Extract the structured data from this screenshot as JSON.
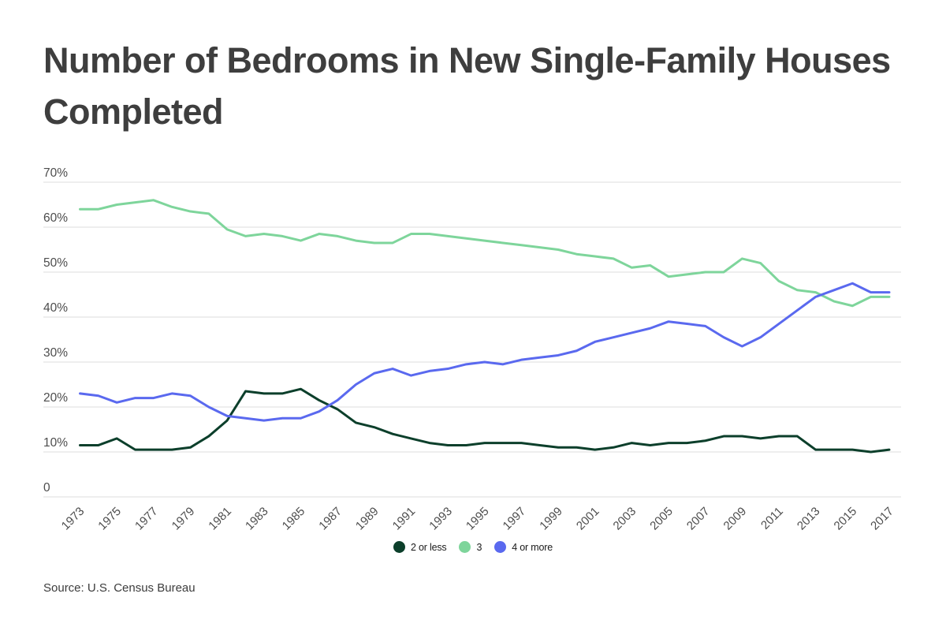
{
  "title": "Number of Bedrooms in New Single-Family Houses Completed",
  "source": "Source: U.S. Census Bureau",
  "legend": [
    {
      "label": "2 or less",
      "color": "#0c3f2b"
    },
    {
      "label": "3",
      "color": "#7ed59b"
    },
    {
      "label": "4 or more",
      "color": "#5a69ef"
    }
  ],
  "colors": {
    "series_2_or_less": "#0c3f2b",
    "series_3": "#7ed59b",
    "series_4_or_more": "#5a69ef",
    "gridline": "#dcdcdc",
    "tick_label": "#4d4d4d",
    "title_text": "#3e3e3e"
  },
  "y_axis": {
    "ticks": [
      0,
      10,
      20,
      30,
      40,
      50,
      60,
      70
    ],
    "tick_labels": [
      "0",
      "10%",
      "20%",
      "30%",
      "40%",
      "50%",
      "60%",
      "70%"
    ],
    "min": 0,
    "max": 70
  },
  "x_axis": {
    "tick_years": [
      1973,
      1975,
      1977,
      1979,
      1981,
      1983,
      1985,
      1987,
      1989,
      1991,
      1993,
      1995,
      1997,
      1999,
      2001,
      2003,
      2005,
      2007,
      2009,
      2011,
      2013,
      2015,
      2017
    ]
  },
  "chart_data": {
    "type": "line",
    "title": "Number of Bedrooms in New Single-Family Houses Completed",
    "xlabel": "",
    "ylabel": "",
    "ylim": [
      0,
      70
    ],
    "grid": "horizontal",
    "legend_position": "bottom",
    "unit": "%",
    "x": [
      1973,
      1974,
      1975,
      1976,
      1977,
      1978,
      1979,
      1980,
      1981,
      1982,
      1983,
      1984,
      1985,
      1986,
      1987,
      1988,
      1989,
      1990,
      1991,
      1992,
      1993,
      1994,
      1995,
      1996,
      1997,
      1998,
      1999,
      2000,
      2001,
      2002,
      2003,
      2004,
      2005,
      2006,
      2007,
      2008,
      2009,
      2010,
      2011,
      2012,
      2013,
      2014,
      2015,
      2016,
      2017
    ],
    "series": [
      {
        "name": "2 or less",
        "color": "#0c3f2b",
        "values": [
          11.5,
          11.5,
          13,
          10.5,
          10.5,
          10.5,
          11,
          13.5,
          17,
          23.5,
          23,
          23,
          24,
          21.5,
          19.5,
          16.5,
          15.5,
          14,
          13,
          12,
          11.5,
          11.5,
          12,
          12,
          12,
          11.5,
          11,
          11,
          10.5,
          11,
          12,
          11.5,
          12,
          12,
          12.5,
          13.5,
          13.5,
          13,
          13.5,
          13.5,
          10.5,
          10.5,
          10.5,
          10,
          10.5
        ]
      },
      {
        "name": "3",
        "color": "#7ed59b",
        "values": [
          64,
          64,
          65,
          65.5,
          66,
          64.5,
          63.5,
          63,
          59.5,
          58,
          58.5,
          58,
          57,
          58.5,
          58,
          57,
          56.5,
          56.5,
          58.5,
          58.5,
          58,
          57.5,
          57,
          56.5,
          56,
          55.5,
          55,
          54,
          53.5,
          53,
          51,
          51.5,
          49,
          49.5,
          50,
          50,
          53,
          52,
          48,
          46,
          45.5,
          43.5,
          42.5,
          44.5,
          44.5
        ]
      },
      {
        "name": "4 or more",
        "color": "#5a69ef",
        "values": [
          23,
          22.5,
          21,
          22,
          22,
          23,
          22.5,
          20,
          18,
          17.5,
          17,
          17.5,
          17.5,
          19,
          21.5,
          25,
          27.5,
          28.5,
          27,
          28,
          28.5,
          29.5,
          30,
          29.5,
          30.5,
          31,
          31.5,
          32.5,
          34.5,
          35.5,
          36.5,
          37.5,
          39,
          38.5,
          38,
          35.5,
          33.5,
          35.5,
          38.5,
          41.5,
          44.5,
          46,
          47.5,
          45.5,
          45.5
        ]
      }
    ]
  }
}
